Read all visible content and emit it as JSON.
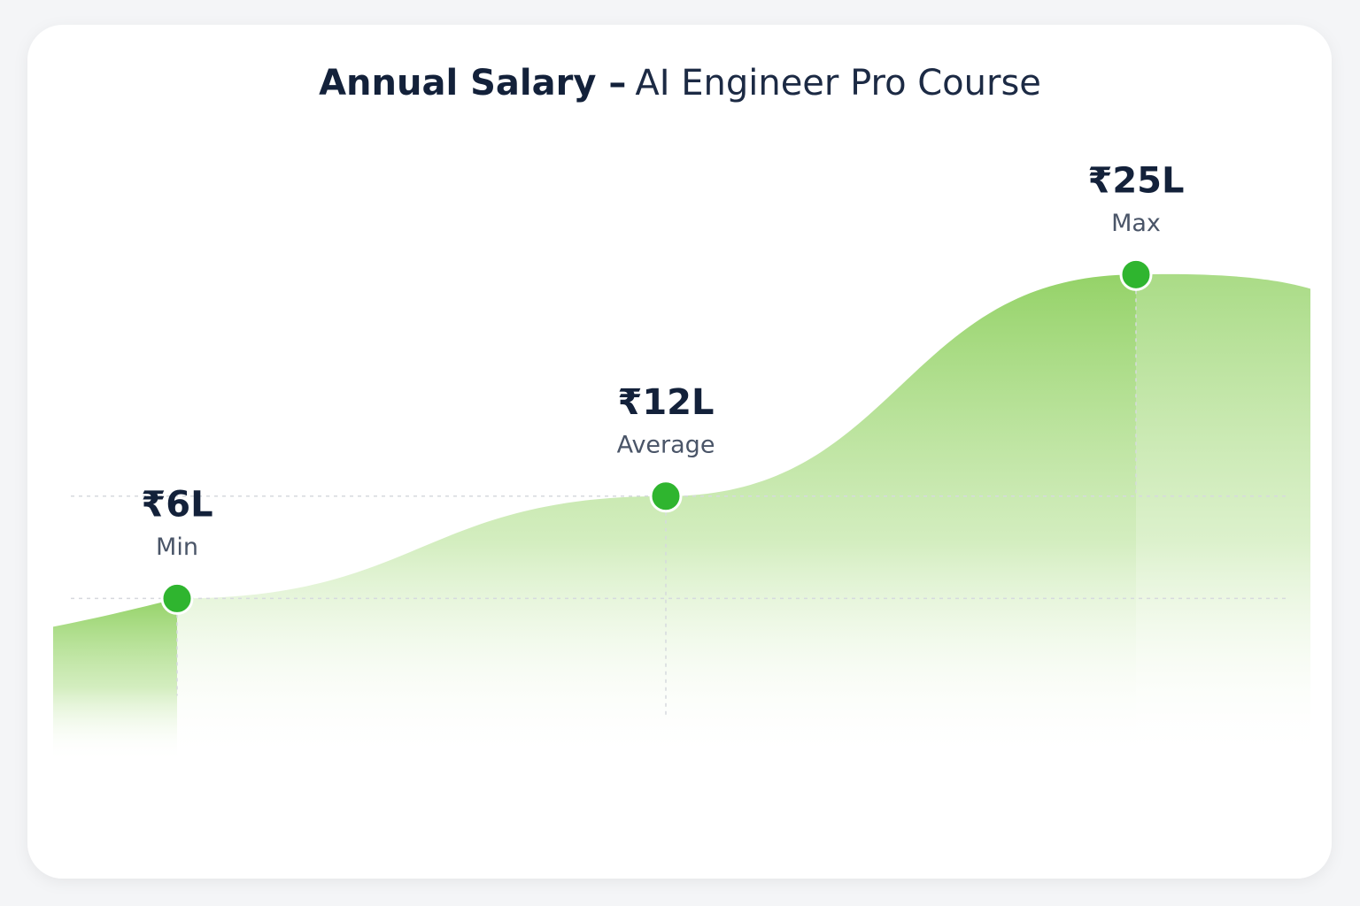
{
  "chart_data": {
    "type": "area",
    "title": "Annual Salary –",
    "subtitle": "AI Engineer Pro Course",
    "categories": [
      "Min",
      "Average",
      "Max"
    ],
    "values": [
      6,
      12,
      25
    ],
    "value_labels": [
      "₹6L",
      "₹12L",
      "₹25L"
    ],
    "color": "#2fb52f",
    "ylim": [
      0,
      30
    ]
  }
}
